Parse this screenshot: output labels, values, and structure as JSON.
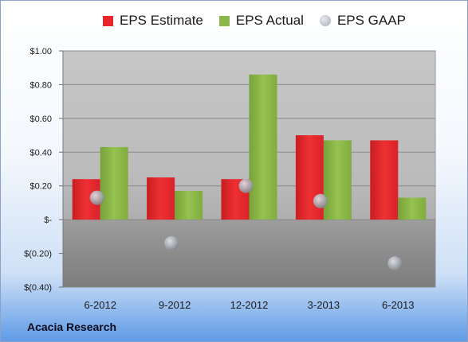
{
  "company": "Acacia Research",
  "chart_data": {
    "type": "bar",
    "categories": [
      "6-2012",
      "9-2012",
      "12-2012",
      "3-2013",
      "6-2013"
    ],
    "series": [
      {
        "name": "EPS Estimate",
        "type": "bar",
        "color": "#e8262a",
        "values": [
          0.24,
          0.25,
          0.24,
          0.5,
          0.47
        ]
      },
      {
        "name": "EPS Actual",
        "type": "bar",
        "color": "#8cb84a",
        "values": [
          0.43,
          0.17,
          0.86,
          0.47,
          0.13
        ]
      },
      {
        "name": "EPS GAAP",
        "type": "marker",
        "color": "#b8bcc4",
        "values": [
          0.13,
          -0.14,
          0.2,
          0.11,
          -0.26
        ]
      }
    ],
    "ylim": [
      -0.4,
      1.0
    ],
    "ytick_values": [
      1.0,
      0.8,
      0.6,
      0.4,
      0.2,
      0,
      -0.2,
      -0.4
    ],
    "ytick_labels": [
      "$1.00",
      "$0.80",
      "$0.60",
      "$0.40",
      "$0.20",
      "$-",
      "$(0.20)",
      "$(0.40)"
    ],
    "grid": true,
    "legend_position": "top"
  }
}
